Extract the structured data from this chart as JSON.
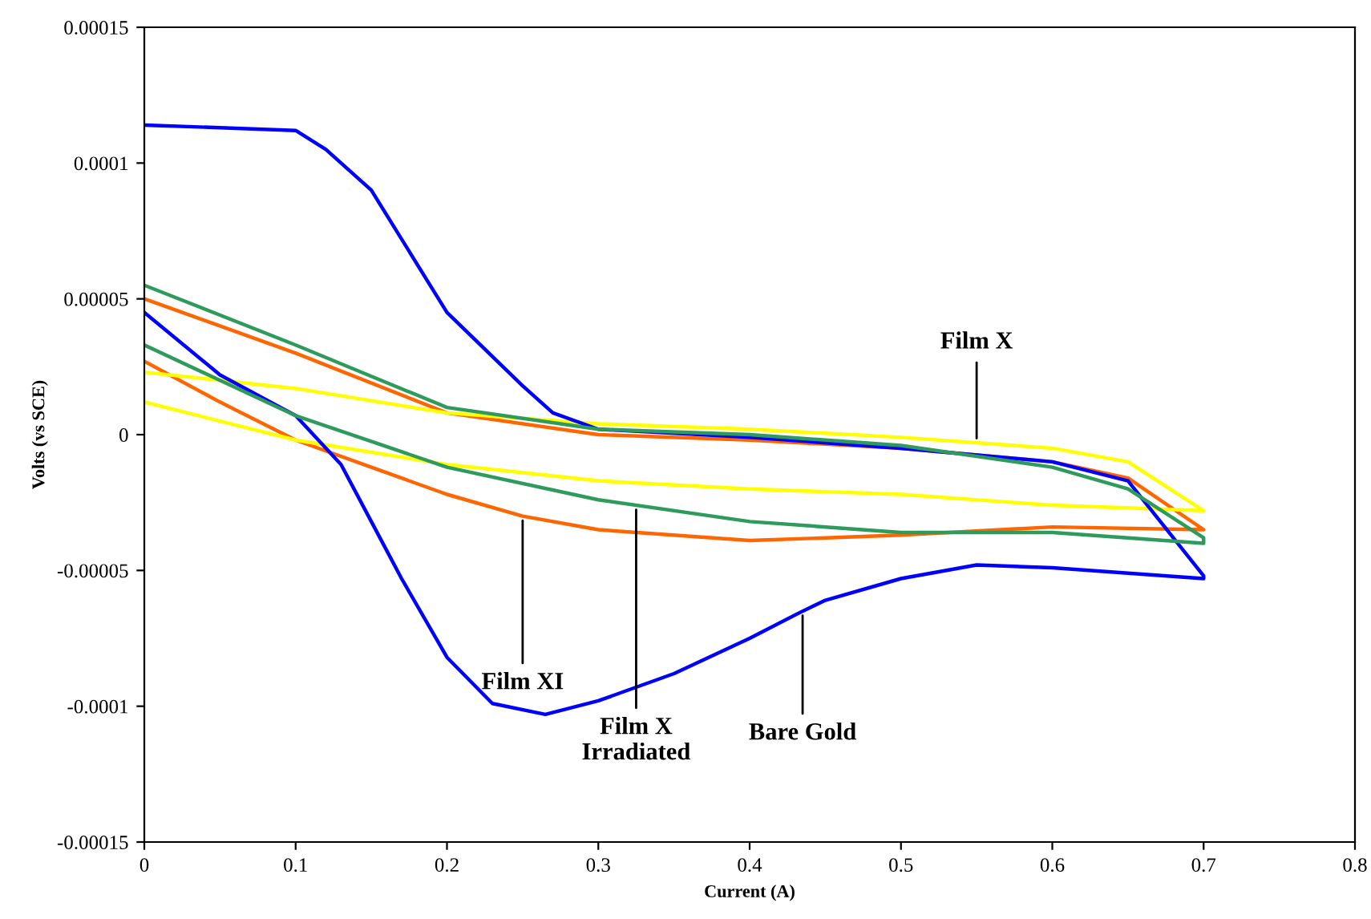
{
  "chart_data": {
    "type": "line",
    "xlabel": "Current (A)",
    "ylabel": "Volts (vs SCE)",
    "xlim": [
      0,
      0.8
    ],
    "xticks": [
      0,
      0.1,
      0.2,
      0.3,
      0.4,
      0.5,
      0.6,
      0.7,
      0.8
    ],
    "ylim": [
      -0.00015,
      0.00015
    ],
    "yticks": [
      {
        "value": -0.00015,
        "label": "-0.00015"
      },
      {
        "value": -0.0001,
        "label": "-0.0001"
      },
      {
        "value": -5e-05,
        "label": "-0.00005"
      },
      {
        "value": 0,
        "label": "0"
      },
      {
        "value": 5e-05,
        "label": "0.00005"
      },
      {
        "value": 0.0001,
        "label": "0.0001"
      },
      {
        "value": 0.00015,
        "label": "0.00015"
      }
    ],
    "grid": false,
    "marker": "none",
    "line_style": "solid",
    "series": [
      {
        "color": "#ff6600",
        "x": [
          0,
          0.1,
          0.2,
          0.3,
          0.4,
          0.5,
          0.6,
          0.65,
          0.7,
          0.7,
          0.6,
          0.5,
          0.4,
          0.3,
          0.25,
          0.2,
          0.15,
          0.1,
          0.05,
          0
        ],
        "values": [
          5e-05,
          3e-05,
          8e-06,
          0,
          -2e-06,
          -5e-06,
          -1e-05,
          -1.6e-05,
          -3.5e-05,
          -3.5e-05,
          -3.4e-05,
          -3.7e-05,
          -3.9e-05,
          -3.5e-05,
          -3e-05,
          -2.2e-05,
          -1.2e-05,
          -2e-06,
          1.2e-05,
          2.7e-05
        ]
      },
      {
        "color": "#ffff00",
        "x": [
          0,
          0.1,
          0.2,
          0.3,
          0.4,
          0.5,
          0.6,
          0.65,
          0.7,
          0.7,
          0.6,
          0.5,
          0.4,
          0.3,
          0.2,
          0.1,
          0.05,
          0
        ],
        "values": [
          2.3e-05,
          1.7e-05,
          8e-06,
          4e-06,
          2e-06,
          -1e-06,
          -5e-06,
          -1e-05,
          -2.8e-05,
          -2.8e-05,
          -2.6e-05,
          -2.2e-05,
          -2e-05,
          -1.7e-05,
          -1.1e-05,
          -2e-06,
          5e-06,
          1.2e-05
        ]
      },
      {
        "color": "#0000ff",
        "x": [
          0,
          0.1,
          0.12,
          0.15,
          0.2,
          0.25,
          0.27,
          0.3,
          0.4,
          0.5,
          0.6,
          0.65,
          0.7,
          0.7,
          0.6,
          0.55,
          0.5,
          0.45,
          0.435,
          0.4,
          0.35,
          0.3,
          0.265,
          0.23,
          0.2,
          0.17,
          0.15,
          0.13,
          0.1,
          0.05,
          0
        ],
        "values": [
          0.000114,
          0.000112,
          0.000105,
          9e-05,
          4.5e-05,
          1.8e-05,
          8e-06,
          2e-06,
          -1e-06,
          -5e-06,
          -1e-05,
          -1.7e-05,
          -5.2e-05,
          -5.3e-05,
          -4.9e-05,
          -4.8e-05,
          -5.3e-05,
          -6.1e-05,
          -6.5e-05,
          -7.5e-05,
          -8.8e-05,
          -9.8e-05,
          -0.000103,
          -9.9e-05,
          -8.2e-05,
          -5.3e-05,
          -3.2e-05,
          -1.1e-05,
          7e-06,
          2.2e-05,
          4.5e-05
        ]
      },
      {
        "color": "#2e9a5c",
        "x": [
          0,
          0.1,
          0.2,
          0.3,
          0.4,
          0.5,
          0.6,
          0.65,
          0.7,
          0.7,
          0.6,
          0.5,
          0.4,
          0.3,
          0.2,
          0.1,
          0.05,
          0
        ],
        "values": [
          5.5e-05,
          3.3e-05,
          1e-05,
          2e-06,
          0,
          -4e-06,
          -1.2e-05,
          -2e-05,
          -3.8e-05,
          -4e-05,
          -3.6e-05,
          -3.6e-05,
          -3.2e-05,
          -2.4e-05,
          -1.2e-05,
          7e-06,
          2e-05,
          3.3e-05
        ]
      }
    ],
    "annotations": [
      {
        "text": "Film X",
        "x": 0.55,
        "y": -3e-06
      },
      {
        "text": "Film XI",
        "x": 0.25,
        "y": -3e-05
      },
      {
        "text": "Film X\nIrradiated",
        "x": 0.325,
        "y": -2.6e-05
      },
      {
        "text": "Bare Gold",
        "x": 0.435,
        "y": -6.5e-05
      }
    ]
  }
}
